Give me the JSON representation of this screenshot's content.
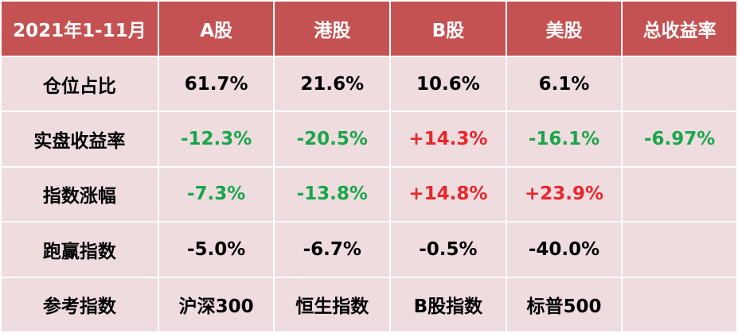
{
  "header": {
    "period": "2021年1-11月",
    "a_share": "A股",
    "hk_share": "港股",
    "b_share": "B股",
    "us_share": "美股",
    "total_return": "总收益率"
  },
  "rows": [
    {
      "label": "仓位占比",
      "a_share": "61.7%",
      "hk_share": "21.6%",
      "b_share": "10.6%",
      "us_share": "6.1%",
      "total": ""
    },
    {
      "label": "实盘收益率",
      "a_share": "-12.3%",
      "hk_share": "-20.5%",
      "b_share": "+14.3%",
      "us_share": "-16.1%",
      "total": "-6.97%"
    },
    {
      "label": "指数涨幅",
      "a_share": "-7.3%",
      "hk_share": "-13.8%",
      "b_share": "+14.8%",
      "us_share": "+23.9%",
      "total": ""
    },
    {
      "label": "跑赢指数",
      "a_share": "-5.0%",
      "hk_share": "-6.7%",
      "b_share": "-0.5%",
      "us_share": "-40.0%",
      "total": ""
    },
    {
      "label": "参考指数",
      "a_share": "沪深300",
      "hk_share": "恒生指数",
      "b_share": "B股指数",
      "us_share": "标普500",
      "total": ""
    }
  ],
  "colors": {
    "header_bg": "#c55253",
    "body_bg": "#efdcdf",
    "positive": "#e8262b",
    "negative": "#19a64a"
  }
}
